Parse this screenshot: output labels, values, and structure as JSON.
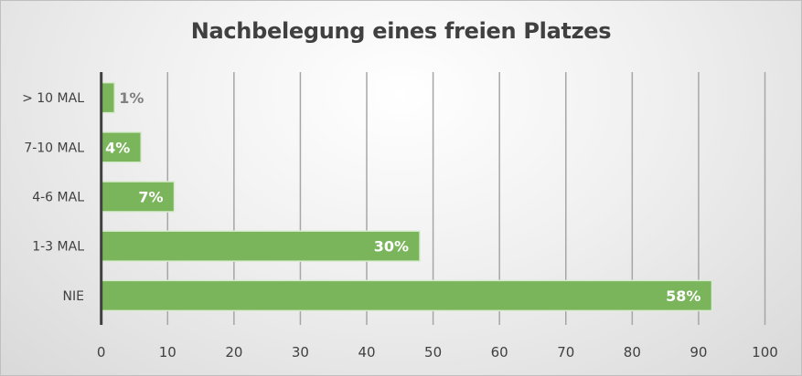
{
  "chart_data": {
    "type": "bar",
    "orientation": "horizontal",
    "title": "Nachbelegung eines freien Platzes",
    "categories": [
      "> 10 MAL",
      "7-10 MAL",
      "4-6 MAL",
      "1-3 MAL",
      "NIE"
    ],
    "values": [
      2,
      6,
      11,
      48,
      92
    ],
    "data_labels": [
      "1%",
      "4%",
      "7%",
      "30%",
      "58%"
    ],
    "xlim": [
      0,
      100
    ],
    "xticks": [
      "0",
      "10",
      "20",
      "30",
      "40",
      "50",
      "60",
      "70",
      "80",
      "90",
      "100"
    ],
    "grid": true,
    "legend": "none",
    "colors": {
      "bar": "#7ab55c",
      "bar_border": "#d9ecd0",
      "label_inside": "#ffffff",
      "label_outside": "#808080",
      "text": "#404040"
    }
  }
}
